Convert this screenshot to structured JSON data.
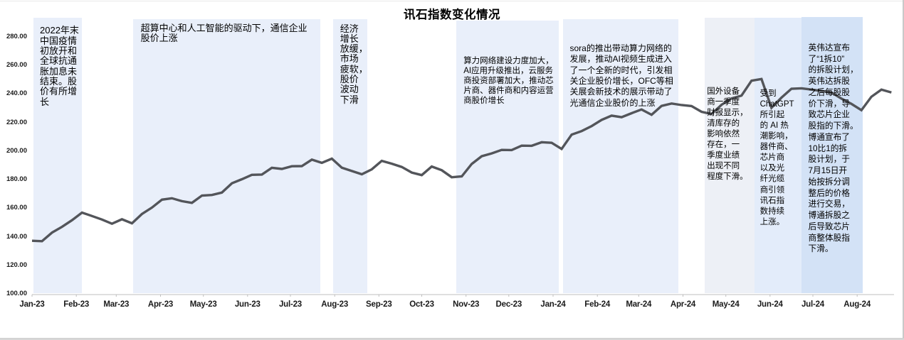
{
  "title": "讯石指数变化情况",
  "chart_data": {
    "type": "line",
    "title": "讯石指数变化情况",
    "ylabel": "",
    "xlabel": "",
    "ylim": [
      100,
      280
    ],
    "y_tick_labels": [
      "280.00",
      "260.00",
      "240.00",
      "220.00",
      "200.00",
      "180.00",
      "160.00",
      "140.00",
      "120.00",
      "100.00"
    ],
    "grid": "off",
    "legend": "none",
    "line_color": "#53555a",
    "axis_color": "#bfbfbf",
    "x_ticks": [
      {
        "label": "Jan-23",
        "day": 0
      },
      {
        "label": "Feb-23",
        "day": 31
      },
      {
        "label": "Mar-23",
        "day": 59
      },
      {
        "label": "Apr-23",
        "day": 90
      },
      {
        "label": "May-23",
        "day": 120
      },
      {
        "label": "Jun-23",
        "day": 151
      },
      {
        "label": "Jul-23",
        "day": 181
      },
      {
        "label": "Aug-23",
        "day": 212
      },
      {
        "label": "Sep-23",
        "day": 243
      },
      {
        "label": "Oct-23",
        "day": 273
      },
      {
        "label": "Nov-23",
        "day": 304
      },
      {
        "label": "Dec-23",
        "day": 334
      },
      {
        "label": "Jan-24",
        "day": 365
      },
      {
        "label": "Feb-24",
        "day": 396
      },
      {
        "label": "Mar-24",
        "day": 425
      },
      {
        "label": "Apr-24",
        "day": 456
      },
      {
        "label": "May-24",
        "day": 486
      },
      {
        "label": "Jun-24",
        "day": 517
      },
      {
        "label": "Jul-24",
        "day": 547
      },
      {
        "label": "Aug-24",
        "day": 578
      }
    ],
    "series": [
      {
        "name": "讯石指数",
        "frequency": "weekly",
        "start_date": "2023-01-01",
        "values": [
          137.3,
          137.0,
          143.0,
          147.0,
          151.7,
          157.0,
          154.6,
          152.1,
          149.2,
          152.3,
          149.5,
          156.0,
          160.5,
          166.0,
          167.0,
          165.0,
          163.8,
          168.9,
          169.3,
          171.0,
          177.5,
          180.3,
          183.4,
          183.6,
          188.3,
          187.5,
          189.4,
          189.5,
          194.0,
          191.8,
          194.7,
          188.4,
          186.1,
          183.8,
          187.2,
          193.2,
          191.2,
          188.9,
          185.0,
          183.2,
          189.2,
          186.6,
          181.7,
          182.3,
          191.0,
          196.4,
          198.4,
          200.8,
          200.7,
          203.8,
          203.7,
          206.2,
          205.8,
          201.5,
          211.5,
          214.0,
          217.5,
          221.8,
          224.8,
          223.7,
          226.5,
          229.1,
          225.4,
          231.6,
          233.3,
          232.2,
          231.5,
          227.5,
          225.9,
          232.4,
          236.8,
          238.8,
          249.2,
          250.4,
          230.3,
          237.4,
          243.6,
          243.9,
          243.0,
          242.0,
          241.0,
          236.7,
          233.0,
          228.6,
          238.0,
          243.0,
          241.0
        ]
      }
    ]
  },
  "annotations": [
    {
      "id": "covid-reopen",
      "start_day": 1,
      "end_day": 35,
      "color": "#e9effa",
      "text": "2022年末\n中国疫情\n初放开和\n全球抗通\n胀加息未\n结束。股\n价有所增\n长"
    },
    {
      "id": "supercomputing-ai",
      "start_day": 71,
      "end_day": 202,
      "color": "#e9effa",
      "text": "超算中心和人工智能的驱动下，通信企业\n股价上涨"
    },
    {
      "id": "economic-slowdown",
      "start_day": 211,
      "end_day": 235,
      "color": "#e9effa",
      "text": "经济\n增长\n放缓，\n市场\n疲软，\n股价\n波动\n下滑"
    },
    {
      "id": "computing-network-buildup",
      "start_day": 297,
      "end_day": 369,
      "color": "#e9effa",
      "text": "算力网络建设力度加大，\nAI应用升级推出，云服务\n商投资部署加大，推动芯\n片商、器件商和内容运营\n商股价增长"
    },
    {
      "id": "sora-launch",
      "start_day": 372,
      "end_day": 453,
      "color": "#e9effa",
      "text": "sora的推出带动算力网络的\n发展，推动AI视频生成进入\n了一个全新的时代，引发相\n关企业股价增长，OFC等相\n关展会新技术的展示带动了\n光通信企业股价的上涨"
    },
    {
      "id": "q1-earnings-decline",
      "start_day": 471,
      "end_day": 506,
      "color": "#edf0f6",
      "text": "国外设备\n商一季度\n财报显示，\n清库存的\n影响依然\n存在，一\n季度业绩\n出现不同\n程度下滑。"
    },
    {
      "id": "chatgpt-ai-boom",
      "start_day": 506,
      "end_day": 539,
      "color": "#e3ecfa",
      "text": "受到\nChatGPT\n所引起\n的 AI 热\n潮影响，\n器件商、\n芯片商\n以及光\n纤光缆\n商引领\n讯石指\n数持续\n上涨。"
    },
    {
      "id": "nvidia-broadcom-split",
      "start_day": 539,
      "end_day": 582,
      "color": "#d3e2f6",
      "text": "英伟达宣布\n了“1拆10”\n的拆股计划，\n英伟达拆股\n之后每股股\n价下滑，导\n致芯片企业\n股指的下滑。\n博通宣布了\n10比1的拆\n股计划，于\n7月15日开\n始按拆分调\n整后的价格\n进行交易，\n博通拆股之\n后导致芯片\n商整体股指\n下滑。"
    }
  ]
}
